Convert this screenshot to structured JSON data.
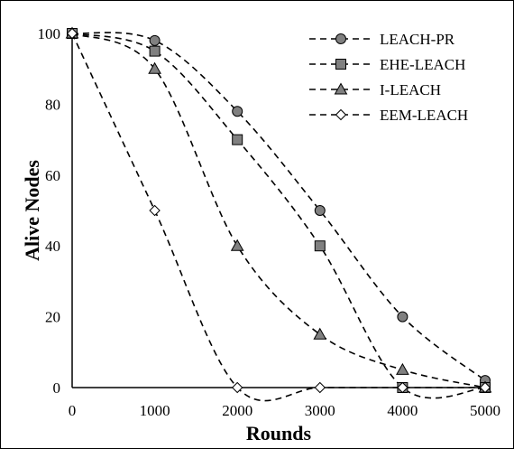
{
  "chart_data": {
    "type": "line",
    "title": "",
    "xlabel": "Rounds",
    "ylabel": "Alive Nodes",
    "xlim": [
      0,
      5000
    ],
    "ylim": [
      0,
      100
    ],
    "xticks": [
      0,
      1000,
      2000,
      3000,
      4000,
      5000
    ],
    "yticks": [
      0,
      20,
      40,
      60,
      80,
      100
    ],
    "grid": false,
    "legend_position": "top-right",
    "line_style": "dashed",
    "series": [
      {
        "name": "LEACH-PR",
        "marker": "circle",
        "fill": "#808080",
        "x": [
          0,
          1000,
          2000,
          3000,
          4000,
          5000
        ],
        "y": [
          100,
          98,
          78,
          50,
          20,
          2
        ]
      },
      {
        "name": "EHE-LEACH",
        "marker": "square",
        "fill": "#808080",
        "x": [
          0,
          1000,
          2000,
          3000,
          4000,
          5000
        ],
        "y": [
          100,
          95,
          70,
          40,
          0,
          0
        ]
      },
      {
        "name": "I-LEACH",
        "marker": "triangle",
        "fill": "#808080",
        "x": [
          0,
          1000,
          2000,
          3000,
          4000,
          5000
        ],
        "y": [
          100,
          90,
          40,
          15,
          5,
          0
        ]
      },
      {
        "name": "EEM-LEACH",
        "marker": "diamond",
        "fill": "#ffffff",
        "x": [
          0,
          1000,
          2000,
          3000,
          4000,
          5000
        ],
        "y": [
          100,
          50,
          0,
          0,
          0,
          0
        ]
      }
    ]
  }
}
